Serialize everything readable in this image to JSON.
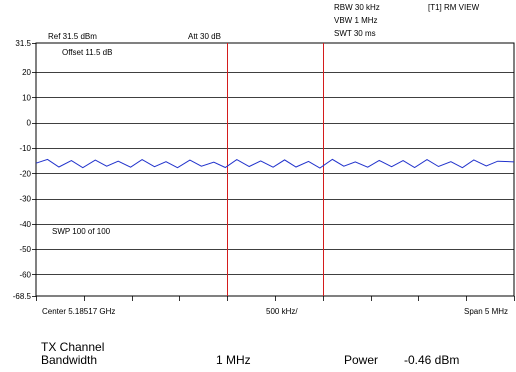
{
  "header": {
    "rbw": "RBW 30 kHz",
    "vbw": "VBW 1 MHz",
    "swt": "SWT 30 ms",
    "trace": "[T1] RM VIEW",
    "ref": "Ref 31.5 dBm",
    "att": "Att  30 dB"
  },
  "annotations": {
    "offset": "Offset 11.5 dB",
    "sweep": "SWP 100 of 100"
  },
  "footer": {
    "center": "Center 5.18517 GHz",
    "div": "500 kHz/",
    "span": "Span 5 MHz"
  },
  "results": {
    "channel_label": "TX Channel",
    "bandwidth_label": "Bandwidth",
    "bandwidth_value": "1 MHz",
    "power_label": "Power",
    "power_value": "-0.46 dBm"
  },
  "colors": {
    "trace": "#2233cc",
    "channel_line": "#d41c1c",
    "grid": "#000000"
  },
  "chart_data": {
    "type": "line",
    "xlim": [
      5.18267,
      5.18767
    ],
    "ylim": [
      -68.5,
      31.5
    ],
    "x_unit": "GHz",
    "y_unit": "dBm",
    "y_ticks": [
      31.5,
      20,
      10,
      0,
      -10,
      -20,
      -30,
      -40,
      -50,
      -60,
      -68.5
    ],
    "y_tick_labels": [
      "31.5",
      "20",
      "10",
      "0",
      "-10",
      "-20",
      "-30",
      "-40",
      "-50",
      "-60",
      "-68.5"
    ],
    "grid": true,
    "channel_bounds": [
      5.18467,
      5.18567
    ],
    "series": [
      {
        "x": [
          5.18267,
          5.18279,
          5.18291,
          5.18304,
          5.18316,
          5.18329,
          5.18341,
          5.18353,
          5.18366,
          5.18378,
          5.18391,
          5.18403,
          5.18415,
          5.18428,
          5.1844,
          5.18453,
          5.18465,
          5.18477,
          5.1849,
          5.18502,
          5.18515,
          5.18527,
          5.18539,
          5.18552,
          5.18564,
          5.18577,
          5.18589,
          5.18601,
          5.18614,
          5.18626,
          5.18639,
          5.18651,
          5.18663,
          5.18676,
          5.18688,
          5.18701,
          5.18713,
          5.18725,
          5.18738,
          5.1875,
          5.18767
        ],
        "values": [
          -16,
          -14.5,
          -17.5,
          -15,
          -17.8,
          -14.8,
          -17.2,
          -15.2,
          -17.6,
          -14.6,
          -17.4,
          -15.4,
          -17.8,
          -14.8,
          -17.2,
          -15.6,
          -17.7,
          -14.6,
          -17.3,
          -15.1,
          -17.6,
          -14.7,
          -17.5,
          -15.3,
          -17.9,
          -14.5,
          -17.2,
          -15.5,
          -17.6,
          -14.9,
          -17.4,
          -15.0,
          -17.7,
          -14.6,
          -17.3,
          -15.4,
          -17.8,
          -14.7,
          -17.1,
          -15.2,
          -15.5
        ]
      }
    ]
  }
}
